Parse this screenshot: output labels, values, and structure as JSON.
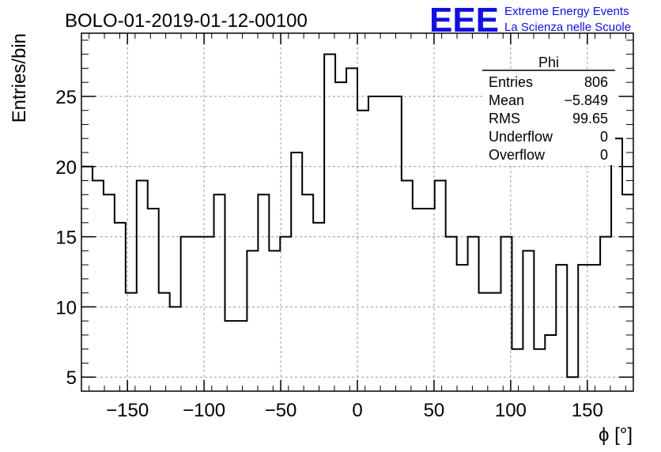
{
  "header": {
    "title": "BOLO-01-2019-01-12-00100",
    "logo_text": "EEE",
    "org_line1": "Extreme Energy Events",
    "org_line2": "La Scienza nelle Scuole",
    "logo_color": "#1010e0"
  },
  "stats": {
    "name": "Phi",
    "rows": [
      {
        "label": "Entries",
        "value": "806"
      },
      {
        "label": "Mean",
        "value": "−5.849"
      },
      {
        "label": "RMS",
        "value": "99.65"
      },
      {
        "label": "Underflow",
        "value": "0"
      },
      {
        "label": "Overflow",
        "value": "0"
      }
    ]
  },
  "chart_data": {
    "type": "histogram",
    "title": "BOLO-01-2019-01-12-00100",
    "xlabel": "ϕ [°]",
    "ylabel": "Entries/bin",
    "xlim": [
      -180,
      180
    ],
    "ylim": [
      4,
      29.5
    ],
    "bin_width": 7.2,
    "xticks": [
      -150,
      -100,
      -50,
      0,
      50,
      100,
      150
    ],
    "xtick_labels": [
      "−150",
      "−100",
      "−50",
      "0",
      "50",
      "100",
      "150"
    ],
    "yticks": [
      5,
      10,
      15,
      20,
      25
    ],
    "yticks_labels": [
      "5",
      "10",
      "15",
      "20",
      "25"
    ],
    "grid": true,
    "values": [
      20,
      19,
      18,
      16,
      11,
      19,
      17,
      11,
      10,
      15,
      15,
      15,
      18,
      9,
      9,
      14,
      18,
      14,
      15,
      21,
      18,
      16,
      28,
      26,
      27,
      24,
      25,
      25,
      25,
      19,
      17,
      17,
      19,
      15,
      13,
      15,
      11,
      11,
      15,
      7,
      14,
      7,
      8,
      13,
      5,
      13,
      13,
      15,
      22,
      18
    ],
    "line_color": "#000000"
  }
}
